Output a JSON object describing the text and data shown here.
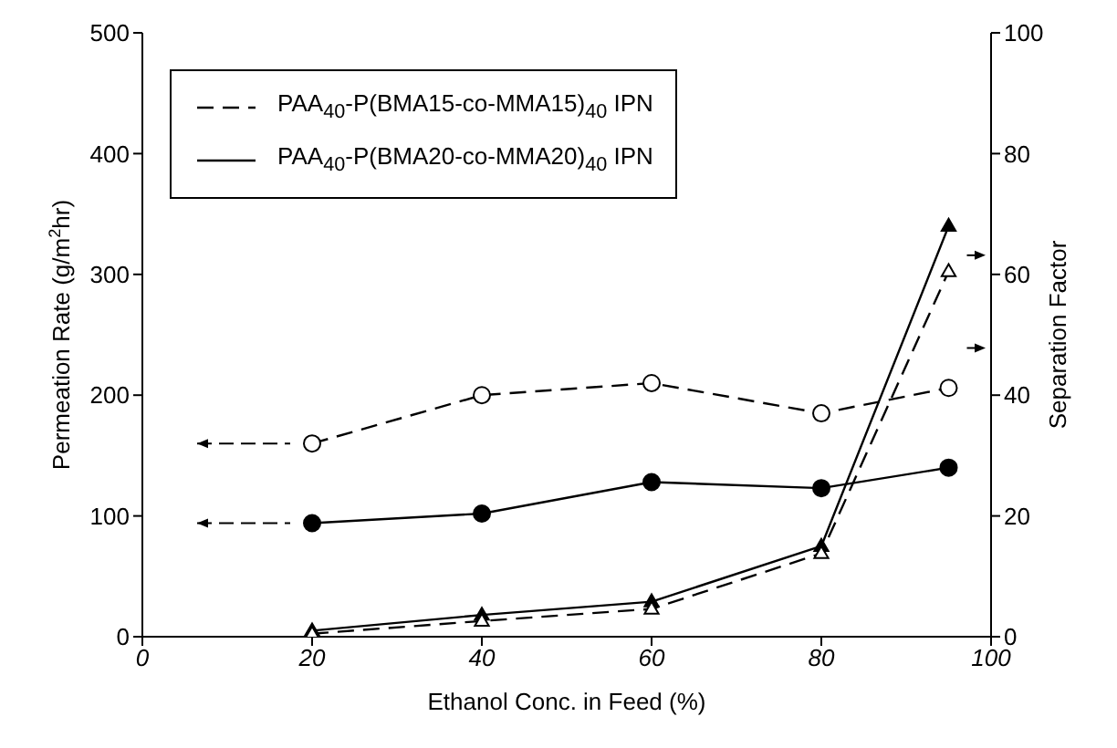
{
  "chart_data": {
    "type": "line",
    "xlabel": "Ethanol Conc. in Feed (%)",
    "ylabel": "Permeation Rate (g/m$^{2}$hr)",
    "y2label": "Separation Factor",
    "x": [
      20,
      40,
      60,
      80,
      95
    ],
    "series": [
      {
        "name": "PAA$_{40}$-P(BMA15-co-MMA15)$_{40}$ IPN",
        "color": "#000000",
        "line_style": "dashed",
        "marker": "circle",
        "values": [
          160,
          200,
          210,
          185,
          206
        ]
      },
      {
        "name": "PAA$_{40}$-P(BMA20-co-MMA20)$_{40}$ IPN",
        "color": "#000000",
        "line_style": "solid",
        "marker": "circle",
        "values": [
          94,
          102,
          128,
          123,
          140
        ]
      },
      {
        "color": "#000000",
        "line_style": "dashed",
        "marker": "triangle",
        "axis": "y2",
        "values": [
          0.5,
          2.6,
          4.6,
          13.8,
          60.5
        ]
      },
      {
        "color": "#000000",
        "line_style": "solid",
        "marker": "triangle",
        "axis": "y2",
        "values": [
          1,
          3.6,
          5.8,
          15,
          68
        ]
      }
    ],
    "xlim": [
      0,
      100
    ],
    "xticks": [
      0,
      20,
      40,
      60,
      80,
      100
    ],
    "ylim": [
      0,
      500
    ],
    "yticks": [
      0,
      100,
      200,
      300,
      400,
      500
    ],
    "y2lim": [
      0,
      100
    ],
    "y2ticks": [
      0,
      20,
      40,
      60,
      80,
      100
    ],
    "grid": false,
    "legend": "top left"
  }
}
